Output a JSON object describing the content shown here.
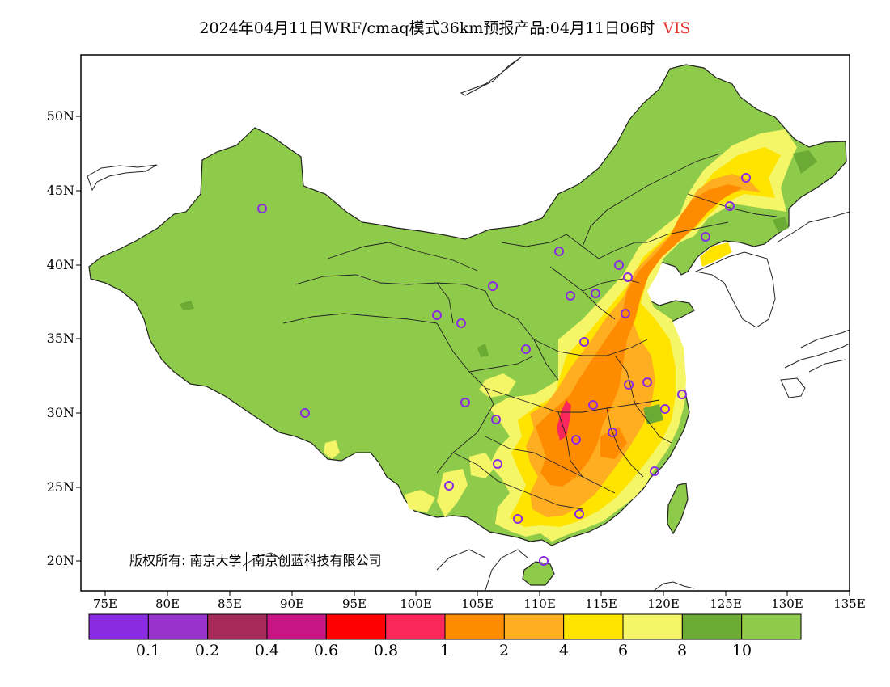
{
  "title": {
    "main": "2024年04月11日WRF/cmaq模式36km预报产品:04月11日06时",
    "variable": "VIS",
    "variable_color": "#e8322f"
  },
  "lat_labels": [
    "50N",
    "45N",
    "40N",
    "35N",
    "30N",
    "25N",
    "20N"
  ],
  "lon_labels": [
    "75E",
    "80E",
    "85E",
    "90E",
    "95E",
    "100E",
    "105E",
    "110E",
    "115E",
    "120E",
    "125E",
    "130E",
    "135E"
  ],
  "colorbar": {
    "colors": [
      "#8a2be2",
      "#9932cc",
      "#a52a5a",
      "#c71585",
      "#ff0000",
      "#f9275a",
      "#ff8c00",
      "#ffae21",
      "#ffe400",
      "#f4f567",
      "#6aaa35",
      "#8fcb4b"
    ],
    "labels": [
      "0.1",
      "0.2",
      "0.4",
      "0.6",
      "0.8",
      "1",
      "2",
      "4",
      "6",
      "8",
      "10"
    ]
  },
  "copyright": {
    "part1": "版权所有: 南京大学",
    "part2": "南京创蓝科技有限公司"
  },
  "colors": {
    "land_clear": "#8fcb4b",
    "land_dark": "#6aaa35",
    "haze_light": "#f4f567",
    "haze_yellow": "#ffe400",
    "haze_orange_light": "#ffae21",
    "haze_orange": "#ff8c00",
    "haze_red": "#f9275a",
    "station_marker": "#8a2be2"
  }
}
